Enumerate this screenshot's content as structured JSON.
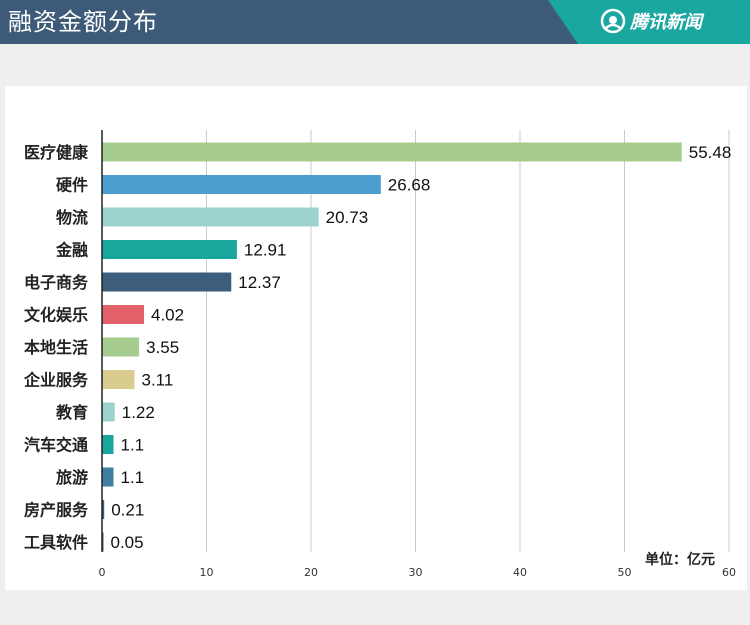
{
  "header": {
    "title": "融资金额分布",
    "brand": "腾讯新闻",
    "brand_icon": "tencent-news-logo-icon"
  },
  "colors": {
    "header_bg": "#3d5b78",
    "brand_bg": "#19a7a0",
    "green": "#a6cc8f",
    "blue": "#4b9fcf",
    "light_teal": "#9dd1cd",
    "teal": "#19a69c",
    "navy": "#3d5d7d",
    "red": "#e2606a",
    "khaki": "#d9cc8e",
    "steel": "#3f7fa0"
  },
  "chart_data": {
    "type": "bar",
    "orientation": "horizontal",
    "categories": [
      "医疗健康",
      "硬件",
      "物流",
      "金融",
      "电子商务",
      "文化娱乐",
      "本地生活",
      "企业服务",
      "教育",
      "汽车交通",
      "旅游",
      "房产服务",
      "工具软件"
    ],
    "values": [
      55.48,
      26.68,
      20.73,
      12.91,
      12.37,
      4.02,
      3.55,
      3.11,
      1.22,
      1.1,
      1.1,
      0.21,
      0.05
    ],
    "labels": [
      "55.48",
      "26.68",
      "20.73",
      "12.91",
      "12.37",
      "4.02",
      "3.55",
      "3.11",
      "1.22",
      "1.1",
      "1.1",
      "0.21",
      "0.05"
    ],
    "bar_colors": [
      "#a6cc8f",
      "#4b9fcf",
      "#9dd1cd",
      "#19a69c",
      "#3d5d7d",
      "#e2606a",
      "#a6cc8f",
      "#d9cc8e",
      "#9dd1cd",
      "#19a69c",
      "#3f7fa0",
      "#3d5d7d",
      "#3d5d7d"
    ],
    "xlim": [
      0,
      60
    ],
    "xticks": [
      0,
      10,
      20,
      30,
      40,
      50,
      60
    ],
    "xtick_labels": [
      "0",
      "10",
      "20",
      "30",
      "40",
      "50",
      "60"
    ],
    "grid": true,
    "unit_label": "单位：亿元"
  }
}
